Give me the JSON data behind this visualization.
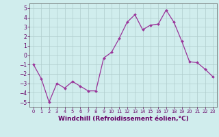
{
  "x": [
    0,
    1,
    2,
    3,
    4,
    5,
    6,
    7,
    8,
    9,
    10,
    11,
    12,
    13,
    14,
    15,
    16,
    17,
    18,
    19,
    20,
    21,
    22,
    23
  ],
  "y": [
    -1.0,
    -2.5,
    -5.0,
    -3.0,
    -3.5,
    -2.8,
    -3.3,
    -3.8,
    -3.8,
    -0.3,
    0.3,
    1.8,
    3.5,
    4.3,
    2.7,
    3.2,
    3.3,
    4.8,
    3.5,
    1.5,
    -0.7,
    -0.8,
    -1.5,
    -2.3
  ],
  "line_color": "#993399",
  "marker": "D",
  "marker_size": 2.0,
  "bg_color": "#d0eded",
  "grid_color": "#b0cccc",
  "xlabel": "Windchill (Refroidissement éolien,°C)",
  "xlabel_fontsize": 6.5,
  "tick_fontsize": 6,
  "ylim": [
    -5.5,
    5.5
  ],
  "xlim": [
    -0.5,
    23.5
  ],
  "yticks": [
    -5,
    -4,
    -3,
    -2,
    -1,
    0,
    1,
    2,
    3,
    4,
    5
  ],
  "xticks": [
    0,
    1,
    2,
    3,
    4,
    5,
    6,
    7,
    8,
    9,
    10,
    11,
    12,
    13,
    14,
    15,
    16,
    17,
    18,
    19,
    20,
    21,
    22,
    23
  ],
  "spine_color": "#555555",
  "label_color": "#660066"
}
